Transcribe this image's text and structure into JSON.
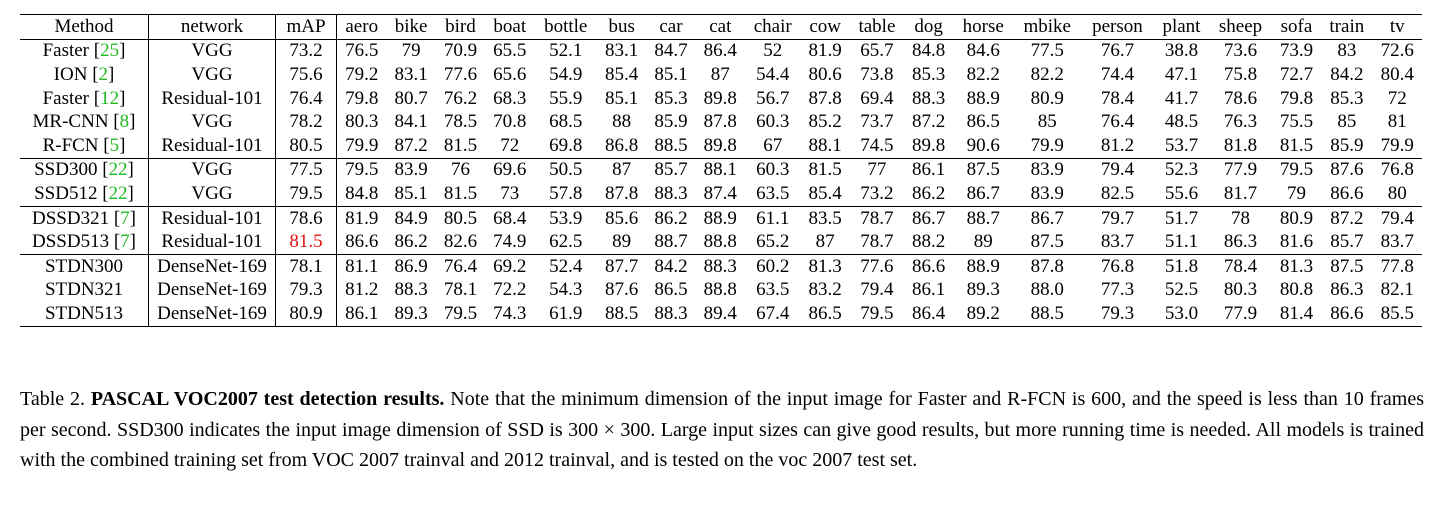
{
  "table": {
    "columns": [
      "Method",
      "network",
      "mAP",
      "aero",
      "bike",
      "bird",
      "boat",
      "bottle",
      "bus",
      "car",
      "cat",
      "chair",
      "cow",
      "table",
      "dog",
      "horse",
      "mbike",
      "person",
      "plant",
      "sheep",
      "sofa",
      "train",
      "tv"
    ],
    "groups": [
      [
        {
          "method": "Faster",
          "ref": "25",
          "network": "VGG",
          "map": "73.2",
          "map_style": "",
          "values": [
            "76.5",
            "79",
            "70.9",
            "65.5",
            "52.1",
            "83.1",
            "84.7",
            "86.4",
            "52",
            "81.9",
            "65.7",
            "84.8",
            "84.6",
            "77.5",
            "76.7",
            "38.8",
            "73.6",
            "73.9",
            "83",
            "72.6"
          ]
        },
        {
          "method": "ION",
          "ref": "2",
          "network": "VGG",
          "map": "75.6",
          "map_style": "",
          "values": [
            "79.2",
            "83.1",
            "77.6",
            "65.6",
            "54.9",
            "85.4",
            "85.1",
            "87",
            "54.4",
            "80.6",
            "73.8",
            "85.3",
            "82.2",
            "82.2",
            "74.4",
            "47.1",
            "75.8",
            "72.7",
            "84.2",
            "80.4"
          ]
        },
        {
          "method": "Faster",
          "ref": "12",
          "network": "Residual-101",
          "map": "76.4",
          "map_style": "",
          "values": [
            "79.8",
            "80.7",
            "76.2",
            "68.3",
            "55.9",
            "85.1",
            "85.3",
            "89.8",
            "56.7",
            "87.8",
            "69.4",
            "88.3",
            "88.9",
            "80.9",
            "78.4",
            "41.7",
            "78.6",
            "79.8",
            "85.3",
            "72"
          ]
        },
        {
          "method": "MR-CNN",
          "ref": "8",
          "network": "VGG",
          "map": "78.2",
          "map_style": "",
          "values": [
            "80.3",
            "84.1",
            "78.5",
            "70.8",
            "68.5",
            "88",
            "85.9",
            "87.8",
            "60.3",
            "85.2",
            "73.7",
            "87.2",
            "86.5",
            "85",
            "76.4",
            "48.5",
            "76.3",
            "75.5",
            "85",
            "81"
          ]
        },
        {
          "method": "R-FCN",
          "ref": "5",
          "network": "Residual-101",
          "map": "80.5",
          "map_style": "",
          "values": [
            "79.9",
            "87.2",
            "81.5",
            "72",
            "69.8",
            "86.8",
            "88.5",
            "89.8",
            "67",
            "88.1",
            "74.5",
            "89.8",
            "90.6",
            "79.9",
            "81.2",
            "53.7",
            "81.8",
            "81.5",
            "85.9",
            "79.9"
          ]
        }
      ],
      [
        {
          "method": "SSD300",
          "ref": "22",
          "network": "VGG",
          "map": "77.5",
          "map_style": "",
          "values": [
            "79.5",
            "83.9",
            "76",
            "69.6",
            "50.5",
            "87",
            "85.7",
            "88.1",
            "60.3",
            "81.5",
            "77",
            "86.1",
            "87.5",
            "83.9",
            "79.4",
            "52.3",
            "77.9",
            "79.5",
            "87.6",
            "76.8"
          ]
        },
        {
          "method": "SSD512",
          "ref": "22",
          "network": "VGG",
          "map": "79.5",
          "map_style": "",
          "values": [
            "84.8",
            "85.1",
            "81.5",
            "73",
            "57.8",
            "87.8",
            "88.3",
            "87.4",
            "63.5",
            "85.4",
            "73.2",
            "86.2",
            "86.7",
            "83.9",
            "82.5",
            "55.6",
            "81.7",
            "79",
            "86.6",
            "80"
          ]
        }
      ],
      [
        {
          "method": "DSSD321",
          "ref": "7",
          "network": "Residual-101",
          "map": "78.6",
          "map_style": "",
          "values": [
            "81.9",
            "84.9",
            "80.5",
            "68.4",
            "53.9",
            "85.6",
            "86.2",
            "88.9",
            "61.1",
            "83.5",
            "78.7",
            "86.7",
            "88.7",
            "86.7",
            "79.7",
            "51.7",
            "78",
            "80.9",
            "87.2",
            "79.4"
          ]
        },
        {
          "method": "DSSD513",
          "ref": "7",
          "network": "Residual-101",
          "map": "81.5",
          "map_style": "best",
          "values": [
            "86.6",
            "86.2",
            "82.6",
            "74.9",
            "62.5",
            "89",
            "88.7",
            "88.8",
            "65.2",
            "87",
            "78.7",
            "88.2",
            "89",
            "87.5",
            "83.7",
            "51.1",
            "86.3",
            "81.6",
            "85.7",
            "83.7"
          ]
        }
      ],
      [
        {
          "method": "STDN300",
          "ref": "",
          "network": "DenseNet-169",
          "map": "78.1",
          "map_style": "",
          "values": [
            "81.1",
            "86.9",
            "76.4",
            "69.2",
            "52.4",
            "87.7",
            "84.2",
            "88.3",
            "60.2",
            "81.3",
            "77.6",
            "86.6",
            "88.9",
            "87.8",
            "76.8",
            "51.8",
            "78.4",
            "81.3",
            "87.5",
            "77.8"
          ]
        },
        {
          "method": "STDN321",
          "ref": "",
          "network": "DenseNet-169",
          "map": "79.3",
          "map_style": "",
          "values": [
            "81.2",
            "88.3",
            "78.1",
            "72.2",
            "54.3",
            "87.6",
            "86.5",
            "88.8",
            "63.5",
            "83.2",
            "79.4",
            "86.1",
            "89.3",
            "88.0",
            "77.3",
            "52.5",
            "80.3",
            "80.8",
            "86.3",
            "82.1"
          ]
        },
        {
          "method": "STDN513",
          "ref": "",
          "network": "DenseNet-169",
          "map": "80.9",
          "map_style": "bold",
          "values": [
            "86.1",
            "89.3",
            "79.5",
            "74.3",
            "61.9",
            "88.5",
            "88.3",
            "89.4",
            "67.4",
            "86.5",
            "79.5",
            "86.4",
            "89.2",
            "88.5",
            "79.3",
            "53.0",
            "77.9",
            "81.4",
            "86.6",
            "85.5"
          ]
        }
      ]
    ]
  },
  "caption": {
    "label": "Table 2.",
    "title": "PASCAL VOC2007 test detection results.",
    "text": "Note that the minimum dimension of the input image for Faster and R-FCN is 600, and the speed is less than 10 frames per second. SSD300 indicates the input image dimension of SSD is 300 × 300. Large input sizes can give good results, but more running time is needed. All models is trained with the combined training set from VOC 2007 trainval and 2012 trainval, and is tested on the voc 2007 test set."
  },
  "colors": {
    "reference_link": "#22b822",
    "best_result": "#e01010"
  }
}
